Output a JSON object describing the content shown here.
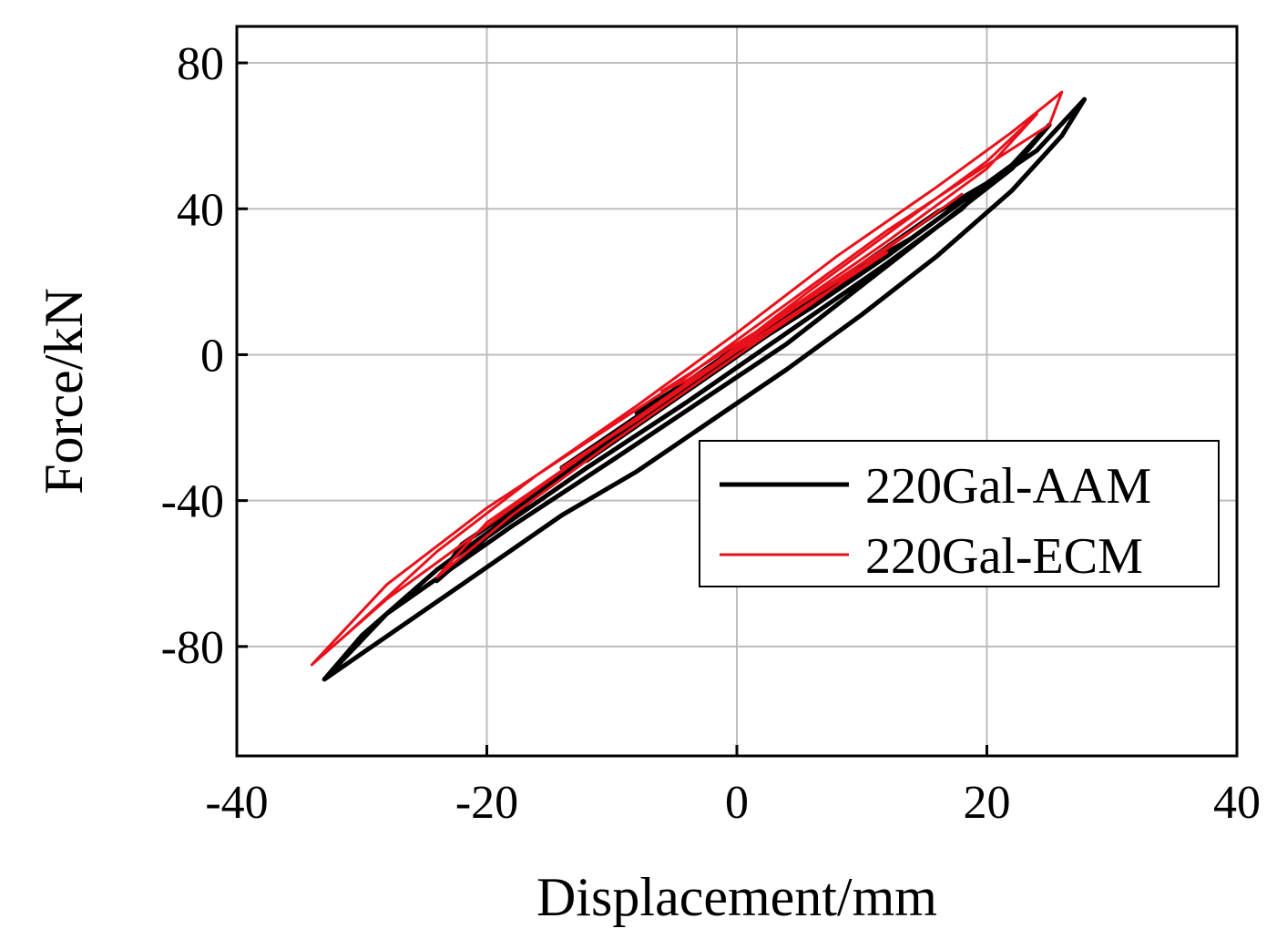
{
  "chart_data": {
    "type": "line",
    "title": "",
    "xlabel": "Displacement/mm",
    "ylabel": "Force/kN",
    "xlim": [
      -40,
      40
    ],
    "ylim": [
      -110,
      90
    ],
    "xticks": [
      -40,
      -20,
      0,
      20,
      40
    ],
    "yticks": [
      80,
      40,
      0,
      -40,
      -80
    ],
    "grid": true,
    "legend_position": "lower-right",
    "series": [
      {
        "name": "220Gal-AAM",
        "color": "#000000",
        "x": [
          -33,
          -22,
          -14,
          -8,
          -2,
          4,
          10,
          16,
          22,
          26,
          27.8,
          24,
          18,
          12,
          6,
          0,
          -6,
          -12,
          -18,
          -24,
          -30,
          -33,
          -28,
          -18,
          -10,
          -3,
          4,
          10,
          16,
          22,
          25,
          22,
          14,
          6,
          -2,
          -10,
          -16,
          -22,
          -24,
          -20,
          -12,
          -4,
          4,
          12,
          18,
          20,
          16,
          8,
          0,
          -8,
          -14,
          -12,
          -4,
          4,
          12,
          14,
          8,
          0,
          -8,
          -6,
          2,
          8,
          4,
          -2
        ],
        "y": [
          -89,
          -63,
          -44,
          -32,
          -18,
          -4,
          11,
          27,
          45,
          60,
          70,
          56,
          42,
          27,
          13,
          0,
          -14,
          -28,
          -44,
          -59,
          -77,
          -89,
          -71,
          -47,
          -29,
          -13,
          3,
          19,
          35,
          51,
          63,
          52,
          32,
          14,
          -3,
          -22,
          -38,
          -52,
          -62,
          -50,
          -31,
          -13,
          6,
          25,
          40,
          47,
          39,
          20,
          2,
          -17,
          -31,
          -29,
          -10,
          9,
          28,
          32,
          18,
          1,
          -16,
          -12,
          5,
          18,
          10,
          -4
        ]
      },
      {
        "name": "220Gal-ECM",
        "color": "#e8111b",
        "x": [
          -34,
          -31,
          -24,
          -16,
          -8,
          0,
          8,
          16,
          22,
          26,
          25,
          20,
          12,
          4,
          -4,
          -12,
          -20,
          -28,
          -34,
          -28,
          -18,
          -10,
          -2,
          6,
          14,
          20,
          24,
          20,
          12,
          4,
          -4,
          -12,
          -20,
          -24,
          -18,
          -10,
          -2,
          6,
          14,
          18,
          14,
          6,
          -2,
          -10,
          -14,
          -8,
          0,
          8,
          12,
          8,
          0,
          -6,
          -4,
          2
        ],
        "y": [
          -85,
          -76,
          -54,
          -33,
          -14,
          6,
          27,
          46,
          61,
          72,
          63,
          52,
          34,
          14,
          -6,
          -24,
          -42,
          -63,
          -85,
          -67,
          -42,
          -22,
          -3,
          18,
          38,
          53,
          66,
          51,
          31,
          12,
          -8,
          -27,
          -46,
          -61,
          -44,
          -24,
          -5,
          14,
          34,
          44,
          34,
          16,
          -3,
          -22,
          -31,
          -18,
          1,
          19,
          28,
          20,
          3,
          -10,
          -7,
          5
        ]
      }
    ]
  }
}
